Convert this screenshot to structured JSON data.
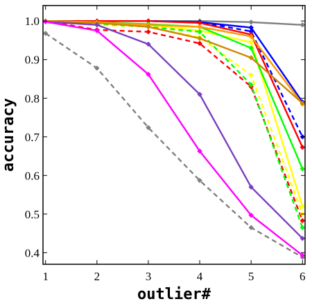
{
  "chart_data": {
    "type": "line",
    "title": "",
    "xlabel": "outlier#",
    "ylabel": "accuracy",
    "x": [
      1,
      2,
      3,
      4,
      5,
      6
    ],
    "xlim": [
      0.95,
      6.05
    ],
    "ylim": [
      0.37,
      1.04
    ],
    "xticks": [
      1,
      2,
      3,
      4,
      5,
      6
    ],
    "yticks": [
      0.4,
      0.5,
      0.6,
      0.7,
      0.8,
      0.9,
      1.0
    ],
    "ytick_labels": [
      "0.4",
      "0.5",
      "0.6",
      "0.7",
      "0.8",
      "0.9",
      "1.0"
    ],
    "grid": false,
    "legend": "none",
    "series": [
      {
        "color": "#808080",
        "dash": "solid",
        "values": [
          1.0,
          1.0,
          1.0,
          1.0,
          0.997,
          0.99
        ]
      },
      {
        "color": "#808080",
        "dash": "dashed",
        "values": [
          0.968,
          0.878,
          0.724,
          0.587,
          0.465,
          0.388
        ]
      },
      {
        "color": "#0000ff",
        "dash": "solid",
        "values": [
          1.0,
          1.0,
          1.0,
          0.997,
          0.983,
          0.79
        ]
      },
      {
        "color": "#0000ff",
        "dash": "dashed",
        "values": [
          1.0,
          1.0,
          1.0,
          0.997,
          0.973,
          0.7
        ]
      },
      {
        "color": "#ff0000",
        "dash": "solid",
        "values": [
          1.0,
          1.0,
          1.0,
          0.995,
          0.965,
          0.673
        ]
      },
      {
        "color": "#ff0000",
        "dash": "dashed",
        "values": [
          1.0,
          0.977,
          0.972,
          0.942,
          0.83,
          0.483
        ]
      },
      {
        "color": "#ffff00",
        "dash": "solid",
        "values": [
          1.0,
          0.995,
          0.99,
          0.975,
          0.945,
          0.52
        ]
      },
      {
        "color": "#ffff00",
        "dash": "dashed",
        "values": [
          1.0,
          0.99,
          0.985,
          0.958,
          0.86,
          0.5
        ]
      },
      {
        "color": "#00ff00",
        "dash": "solid",
        "values": [
          1.0,
          0.997,
          0.992,
          0.985,
          0.93,
          0.617
        ]
      },
      {
        "color": "#00ff00",
        "dash": "dashed",
        "values": [
          1.0,
          0.993,
          0.985,
          0.972,
          0.835,
          0.465
        ]
      },
      {
        "color": "#ff9900",
        "dash": "solid",
        "values": [
          1.0,
          0.997,
          0.99,
          0.985,
          0.96,
          0.785
        ]
      },
      {
        "color": "#cc8800",
        "dash": "solid",
        "values": [
          1.0,
          0.995,
          0.985,
          0.955,
          0.905,
          0.787
        ]
      },
      {
        "color": "#7b3fbf",
        "dash": "solid",
        "values": [
          0.998,
          0.99,
          0.94,
          0.81,
          0.57,
          0.437
        ]
      },
      {
        "color": "#ff00ff",
        "dash": "solid",
        "values": [
          0.998,
          0.975,
          0.862,
          0.663,
          0.497,
          0.393
        ]
      }
    ]
  }
}
